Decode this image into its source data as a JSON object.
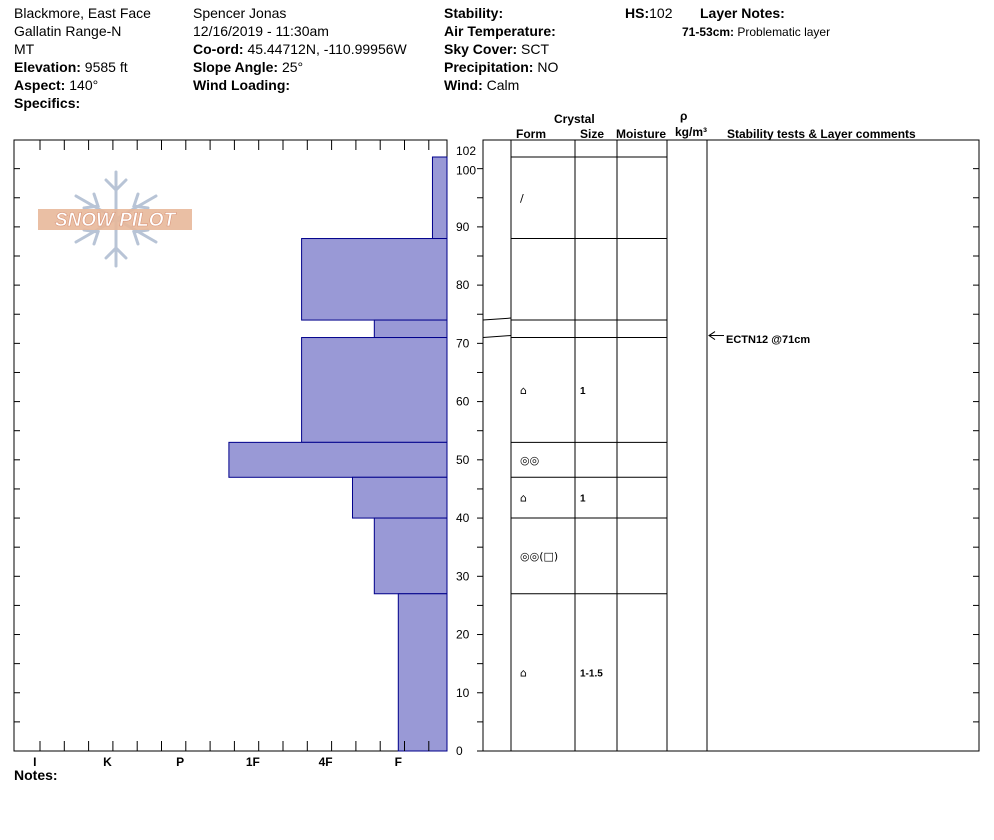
{
  "header": {
    "location": "Blackmore, East Face",
    "range": "Gallatin Range-N",
    "state": "MT",
    "elevation_label": "Elevation:",
    "elevation_value": "9585 ft",
    "aspect_label": "Aspect:",
    "aspect_value": "140°",
    "specifics_label": "Specifics:",
    "observer": "Spencer Jonas",
    "datetime": "12/16/2019 - 11:30am",
    "coord_label": "Co-ord:",
    "coord_value": "45.44712N, -110.99956W",
    "slope_label": "Slope Angle:",
    "slope_value": "25°",
    "wind_loading_label": "Wind Loading:",
    "stability_label": "Stability:",
    "air_temp_label": "Air Temperature:",
    "sky_label": "Sky Cover:",
    "sky_value": "SCT",
    "precip_label": "Precipitation:",
    "precip_value": "NO",
    "wind_label": "Wind:",
    "wind_value": "Calm",
    "hs_label": "HS:",
    "hs_value": "102",
    "layer_notes_label": "Layer Notes:",
    "layer_note_range": "71-53cm:",
    "layer_note_text": "Problematic layer"
  },
  "logo": {
    "text": "SNOW PILOT"
  },
  "notes_label": "Notes:",
  "columns": {
    "crystal": "Crystal",
    "form": "Form",
    "size": "Size",
    "moisture": "Moisture",
    "rho": "ρ",
    "density_unit": "kg/m³",
    "stability": "Stability tests & Layer comments"
  },
  "test_result": {
    "text": "ECTN12 @71cm",
    "depth_cm": 71
  },
  "colors": {
    "bar_fill": "#9999d6",
    "bar_stroke": "#00008b",
    "logo": "#e8b89a",
    "flake": "#b8c4d6"
  },
  "chart_data": {
    "type": "bar",
    "orientation": "horizontal",
    "title": "",
    "x_axis": {
      "categories": [
        "I",
        "K",
        "P",
        "1F",
        "4F",
        "F"
      ]
    },
    "y_axis": {
      "range": [
        0,
        102
      ],
      "ticks": [
        0,
        10,
        20,
        30,
        40,
        50,
        60,
        70,
        80,
        90,
        100,
        102
      ]
    },
    "layers": [
      {
        "top": 102,
        "bottom": 88,
        "hardness": "F+"
      },
      {
        "top": 88,
        "bottom": 74,
        "hardness": "4F"
      },
      {
        "top": 74,
        "bottom": 71,
        "hardness": "1F"
      },
      {
        "top": 71,
        "bottom": 53,
        "hardness": "4F"
      },
      {
        "top": 53,
        "bottom": 47,
        "hardness": "P"
      },
      {
        "top": 47,
        "bottom": 40,
        "hardness": "1F+"
      },
      {
        "top": 40,
        "bottom": 27,
        "hardness": "1F"
      },
      {
        "top": 27,
        "bottom": 0,
        "hardness": "1F-"
      }
    ],
    "hardness_values": [
      0.2,
      2,
      1,
      2,
      3,
      1.3,
      1,
      0.67
    ],
    "crystal_layers": [
      {
        "top": 102,
        "bottom": 88,
        "form": "/",
        "size": ""
      },
      {
        "top": 88,
        "bottom": 74,
        "form": "",
        "size": ""
      },
      {
        "top": 74,
        "bottom": 71,
        "form": "",
        "size": ""
      },
      {
        "top": 71,
        "bottom": 53,
        "form": "⌂",
        "size": "1"
      },
      {
        "top": 53,
        "bottom": 47,
        "form": "◎◎",
        "size": ""
      },
      {
        "top": 47,
        "bottom": 40,
        "form": "⌂",
        "size": "1"
      },
      {
        "top": 40,
        "bottom": 27,
        "form": "◎◎(□)",
        "size": ""
      },
      {
        "top": 27,
        "bottom": 0,
        "form": "⌂",
        "size": "1-1.5"
      }
    ]
  }
}
